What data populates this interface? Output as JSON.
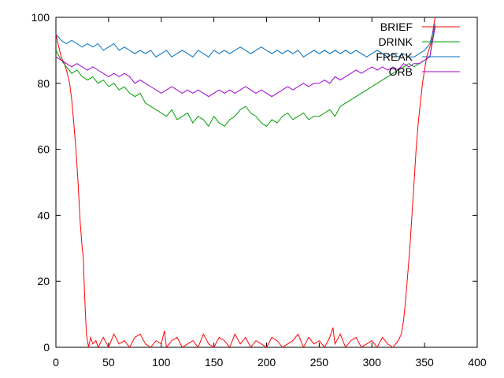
{
  "chart_data": {
    "type": "line",
    "title": "",
    "xlabel": "",
    "ylabel": "",
    "xlim": [
      0,
      400
    ],
    "ylim": [
      0,
      100
    ],
    "xticks": [
      0,
      50,
      100,
      150,
      200,
      250,
      300,
      350,
      400
    ],
    "yticks": [
      0,
      20,
      40,
      60,
      80,
      100
    ],
    "grid": false,
    "legend_position": "top-right",
    "series": [
      {
        "name": "BRIEF",
        "color": "#ff0000",
        "x": [
          0,
          2,
          5,
          8,
          10,
          13,
          15,
          17,
          19,
          21,
          23,
          25,
          26,
          27,
          28,
          29,
          30,
          31,
          33,
          35,
          38,
          40,
          45,
          50,
          55,
          60,
          65,
          70,
          75,
          80,
          85,
          90,
          95,
          100,
          103,
          105,
          110,
          115,
          120,
          125,
          130,
          135,
          140,
          145,
          150,
          155,
          160,
          165,
          170,
          175,
          180,
          185,
          190,
          195,
          200,
          205,
          210,
          215,
          220,
          225,
          230,
          235,
          240,
          245,
          250,
          255,
          260,
          263,
          265,
          270,
          275,
          280,
          285,
          290,
          295,
          300,
          305,
          310,
          315,
          320,
          325,
          328,
          330,
          332,
          334,
          336,
          338,
          340,
          342,
          344,
          346,
          348,
          350,
          352,
          354,
          356,
          358,
          360
        ],
        "y": [
          95,
          92,
          88,
          86,
          84,
          80,
          75,
          68,
          60,
          50,
          38,
          30,
          27,
          18,
          10,
          4,
          2,
          0,
          3,
          1,
          2,
          0,
          3,
          0,
          4,
          1,
          2,
          0,
          3,
          4,
          1,
          0,
          2,
          1,
          5,
          0,
          2,
          3,
          0,
          1,
          2,
          0,
          4,
          1,
          0,
          3,
          2,
          0,
          4,
          1,
          3,
          0,
          2,
          1,
          0,
          3,
          2,
          0,
          1,
          2,
          4,
          0,
          3,
          1,
          2,
          0,
          3,
          6,
          1,
          4,
          0,
          2,
          3,
          0,
          1,
          2,
          0,
          3,
          1,
          0,
          2,
          4,
          8,
          14,
          22,
          30,
          40,
          50,
          60,
          68,
          74,
          80,
          84,
          88,
          90,
          92,
          96,
          100
        ]
      },
      {
        "name": "DRINK",
        "color": "#00a000",
        "x": [
          0,
          5,
          10,
          15,
          20,
          25,
          30,
          35,
          40,
          45,
          50,
          55,
          60,
          65,
          70,
          75,
          80,
          85,
          90,
          95,
          100,
          105,
          110,
          115,
          120,
          125,
          130,
          135,
          140,
          145,
          150,
          155,
          160,
          165,
          170,
          175,
          180,
          185,
          190,
          195,
          200,
          205,
          210,
          215,
          220,
          225,
          230,
          235,
          240,
          245,
          250,
          255,
          260,
          265,
          270,
          275,
          280,
          285,
          290,
          295,
          300,
          305,
          310,
          315,
          320,
          325,
          330,
          335,
          340,
          345,
          350,
          355,
          360
        ],
        "y": [
          90,
          87,
          85,
          83,
          84,
          82,
          81,
          82,
          80,
          81,
          79,
          80,
          78,
          79,
          77,
          76,
          77,
          74,
          73,
          72,
          71,
          70,
          72,
          69,
          70,
          71,
          68,
          70,
          69,
          67,
          70,
          68,
          67,
          69,
          70,
          72,
          73,
          71,
          70,
          68,
          67,
          69,
          68,
          70,
          71,
          69,
          70,
          71,
          69,
          70,
          70,
          71,
          72,
          70,
          73,
          74,
          75,
          76,
          77,
          78,
          79,
          80,
          81,
          82,
          83,
          84,
          85,
          86,
          85,
          86,
          87,
          88,
          98
        ]
      },
      {
        "name": "FREAK",
        "color": "#0070c0",
        "x": [
          0,
          5,
          10,
          15,
          20,
          25,
          30,
          35,
          40,
          45,
          50,
          55,
          60,
          65,
          70,
          75,
          80,
          85,
          90,
          95,
          100,
          105,
          110,
          115,
          120,
          125,
          130,
          135,
          140,
          145,
          150,
          155,
          160,
          165,
          170,
          175,
          180,
          185,
          190,
          195,
          200,
          205,
          210,
          215,
          220,
          225,
          230,
          235,
          240,
          245,
          250,
          255,
          260,
          265,
          270,
          275,
          280,
          285,
          290,
          295,
          300,
          305,
          310,
          315,
          320,
          325,
          330,
          335,
          340,
          345,
          350,
          355,
          360
        ],
        "y": [
          95,
          93,
          92,
          93,
          92,
          91,
          92,
          91,
          92,
          90,
          91,
          92,
          90,
          91,
          90,
          89,
          90,
          89,
          90,
          88,
          89,
          90,
          88,
          89,
          90,
          89,
          88,
          90,
          89,
          88,
          90,
          89,
          90,
          89,
          90,
          91,
          90,
          89,
          90,
          91,
          90,
          89,
          90,
          89,
          90,
          89,
          90,
          88,
          89,
          90,
          89,
          90,
          89,
          90,
          89,
          90,
          89,
          90,
          89,
          88,
          89,
          90,
          89,
          88,
          89,
          88,
          89,
          88,
          88,
          89,
          90,
          92,
          98
        ]
      },
      {
        "name": "ORB",
        "color": "#a000d0",
        "x": [
          0,
          5,
          10,
          15,
          20,
          25,
          30,
          35,
          40,
          45,
          50,
          55,
          60,
          65,
          70,
          75,
          80,
          85,
          90,
          95,
          100,
          105,
          110,
          115,
          120,
          125,
          130,
          135,
          140,
          145,
          150,
          155,
          160,
          165,
          170,
          175,
          180,
          185,
          190,
          195,
          200,
          205,
          210,
          215,
          220,
          225,
          230,
          235,
          240,
          245,
          250,
          255,
          260,
          265,
          270,
          275,
          280,
          285,
          290,
          295,
          300,
          305,
          310,
          315,
          320,
          325,
          330,
          335,
          340,
          345,
          350,
          355,
          360
        ],
        "y": [
          88,
          87,
          86,
          85,
          86,
          85,
          84,
          85,
          84,
          83,
          82,
          83,
          82,
          83,
          82,
          80,
          81,
          80,
          79,
          78,
          77,
          78,
          79,
          78,
          77,
          78,
          77,
          78,
          77,
          76,
          77,
          78,
          77,
          78,
          77,
          78,
          79,
          78,
          77,
          78,
          77,
          76,
          77,
          78,
          79,
          78,
          79,
          80,
          79,
          80,
          80,
          81,
          80,
          82,
          81,
          82,
          83,
          84,
          83,
          84,
          85,
          84,
          85,
          84,
          85,
          84,
          86,
          85,
          86,
          86,
          87,
          88,
          97
        ]
      }
    ]
  }
}
